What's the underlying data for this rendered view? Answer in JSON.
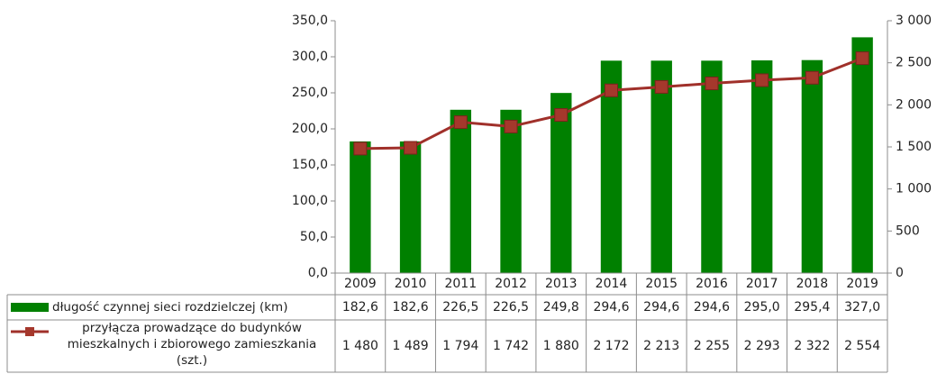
{
  "chart_data": {
    "type": "bar-line",
    "categories": [
      "2009",
      "2010",
      "2011",
      "2012",
      "2013",
      "2014",
      "2015",
      "2016",
      "2017",
      "2018",
      "2019"
    ],
    "series": [
      {
        "name": "długość czynnej sieci rozdzielczej (km)",
        "type": "bar",
        "color": "#008000",
        "values": [
          182.6,
          182.6,
          226.5,
          226.5,
          249.8,
          294.6,
          294.6,
          294.6,
          295.0,
          295.4,
          327.0
        ],
        "value_labels": [
          "182,6",
          "182,6",
          "226,5",
          "226,5",
          "249,8",
          "294,6",
          "294,6",
          "294,6",
          "295,0",
          "295,4",
          "327,0"
        ]
      },
      {
        "name": "przyłącza prowadzące do budynków mieszkalnych i zbiorowego zamieszkania (szt.)",
        "type": "line",
        "axis": "y2",
        "color": "#a0302a",
        "marker_color": "#a5382c",
        "values": [
          1480,
          1489,
          1794,
          1742,
          1880,
          2172,
          2213,
          2255,
          2293,
          2322,
          2554
        ],
        "value_labels": [
          "1 480",
          "1 489",
          "1 794",
          "1 742",
          "1 880",
          "2 172",
          "2 213",
          "2 255",
          "2 293",
          "2 322",
          "2 554"
        ]
      }
    ],
    "ylim": [
      0,
      350
    ],
    "yticks": [
      {
        "value": 0,
        "label": "0,0"
      },
      {
        "value": 50,
        "label": "50,0"
      },
      {
        "value": 100,
        "label": "100,0"
      },
      {
        "value": 150,
        "label": "150,0"
      },
      {
        "value": 200,
        "label": "200,0"
      },
      {
        "value": 250,
        "label": "250,0"
      },
      {
        "value": 300,
        "label": "300,0"
      },
      {
        "value": 350,
        "label": "350,0"
      }
    ],
    "y2lim": [
      0,
      3000
    ],
    "y2ticks": [
      0,
      500,
      {
        "value": 1000,
        "label": "1 000"
      },
      {
        "value": 1500,
        "label": "1 500"
      },
      {
        "value": 2000,
        "label": "2 000"
      },
      {
        "value": 2500,
        "label": "2 500"
      },
      {
        "value": 3000,
        "label": "3 000"
      }
    ],
    "grid": false
  }
}
